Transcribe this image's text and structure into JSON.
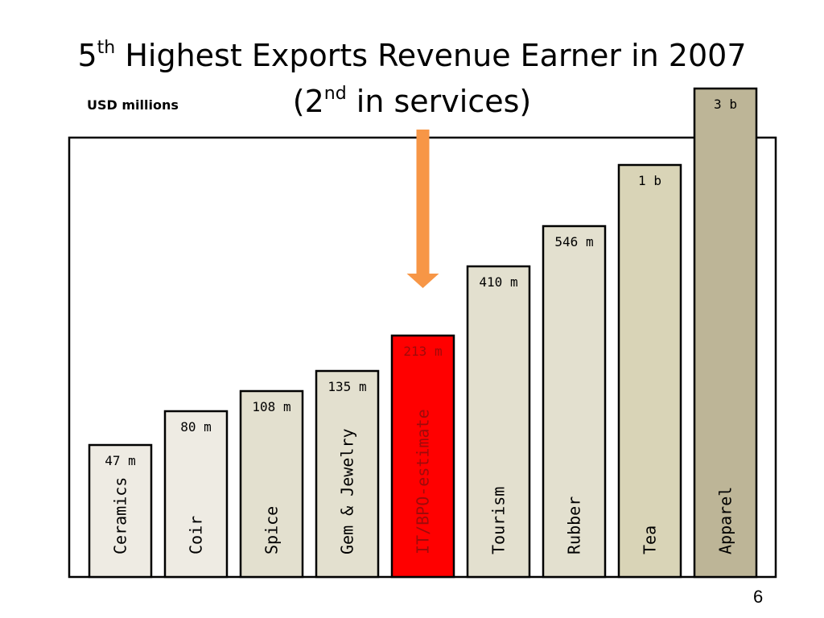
{
  "title": {
    "line1_prefix": "5",
    "line1_sup": "th",
    "line1_rest": " Highest Exports Revenue Earner in 2007",
    "line2_prefix": "(2",
    "line2_sup": "nd",
    "line2_rest": " in services)"
  },
  "units_label": "USD millions",
  "page_number": "6",
  "colors": {
    "bar_light": "#EEEBE3",
    "bar_mid": "#E3E0CF",
    "bar_dark": "#D9D4B7",
    "bar_darkest": "#BDB597",
    "highlight": "#FF0000",
    "arrow": "#F79646",
    "frame": "#000000"
  },
  "chart_data": {
    "type": "bar",
    "categories": [
      "Ceramics",
      "Coir",
      "Spice",
      "Gem & Jewelry",
      "IT/BPO-estimate",
      "Tourism",
      "Rubber",
      "Tea",
      "Apparel"
    ],
    "values": [
      47,
      80,
      108,
      135,
      213,
      410,
      546,
      1000,
      3000
    ],
    "value_labels": [
      "47 m",
      "80 m",
      "108 m",
      "135 m",
      "213 m",
      "410 m",
      "546 m",
      "1 b",
      "3 b"
    ],
    "highlight_index": 4,
    "annotation": "arrow pointing down to IT/BPO-estimate bar",
    "ylabel": "USD millions",
    "scale": "non-linear (visual ranking)"
  }
}
